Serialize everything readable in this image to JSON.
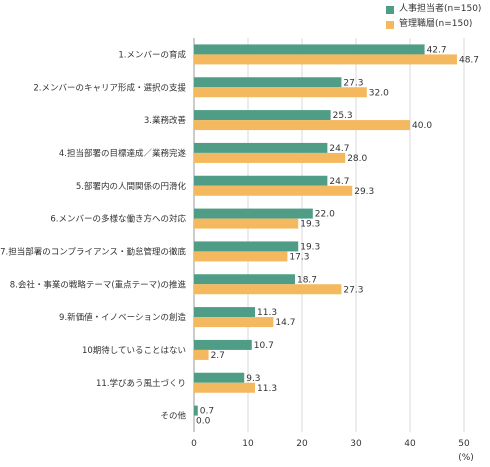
{
  "legend": {
    "series1": "人事担当者(n=150)",
    "series2": "管理職層(n=150)"
  },
  "colors": {
    "series1": "#4f9d86",
    "series2": "#f4b95f"
  },
  "chart_data": {
    "type": "bar",
    "orientation": "horizontal",
    "categories": [
      "1.メンバーの育成",
      "2.メンバーのキャリア形成・選択の支援",
      "3.業務改善",
      "4.担当部署の目標達成／業務完遂",
      "5.部署内の人間関係の円滑化",
      "6.メンバーの多様な働き方への対応",
      "7.担当部署のコンプライアンス・勤怠管理の徹底",
      "8.会社・事業の戦略テーマ(重点テーマ)の推進",
      "9.新価値・イノベーションの創造",
      "10期待していることはない",
      "11.学びあう風土づくり",
      "その他"
    ],
    "series": [
      {
        "name": "人事担当者(n=150)",
        "values": [
          42.7,
          27.3,
          25.3,
          24.7,
          24.7,
          22.0,
          19.3,
          18.7,
          11.3,
          10.7,
          9.3,
          0.7
        ]
      },
      {
        "name": "管理職層(n=150)",
        "values": [
          48.7,
          32.0,
          40.0,
          28.0,
          29.3,
          19.3,
          17.3,
          27.3,
          14.7,
          2.7,
          11.3,
          0.0
        ]
      }
    ],
    "xlim": [
      0,
      50
    ],
    "xticks": [
      0,
      10,
      20,
      30,
      40,
      50
    ],
    "xunit": "(%)",
    "grid": true,
    "legend_position": "top-right"
  }
}
